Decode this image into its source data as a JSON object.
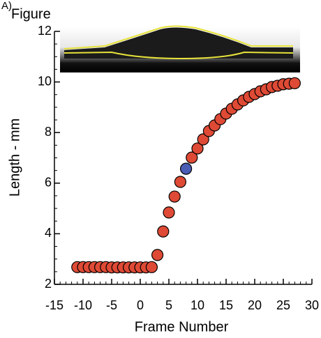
{
  "chart_data": {
    "type": "scatter",
    "panel_label": "A)",
    "title": "Figure",
    "xlabel": "Frame Number",
    "ylabel": "Length - mm",
    "x": [
      -11,
      -10,
      -9,
      -8,
      -7,
      -6,
      -5,
      -4,
      -3,
      -2,
      -1,
      0,
      1,
      2,
      3,
      4,
      5,
      6,
      7,
      8,
      9,
      10,
      11,
      12,
      13,
      14,
      15,
      16,
      17,
      18,
      19,
      20,
      21,
      22,
      23,
      24,
      25,
      26,
      27
    ],
    "values": [
      2.68,
      2.68,
      2.68,
      2.68,
      2.68,
      2.68,
      2.67,
      2.67,
      2.67,
      2.67,
      2.67,
      2.67,
      2.67,
      2.68,
      3.16,
      4.09,
      4.84,
      5.47,
      6.05,
      6.57,
      7.01,
      7.37,
      7.73,
      8.06,
      8.28,
      8.53,
      8.75,
      8.94,
      9.11,
      9.27,
      9.41,
      9.52,
      9.63,
      9.71,
      9.8,
      9.85,
      9.91,
      9.93,
      9.95
    ],
    "color": "#de4a35",
    "highlight_index": 19,
    "highlight_color": "#4a5db4",
    "xlim": [
      -15,
      30
    ],
    "xticks": [
      -15,
      -10,
      -5,
      0,
      5,
      10,
      15,
      20,
      25,
      30
    ],
    "ylim": [
      2,
      12
    ],
    "yticks": [
      2,
      4,
      6,
      8,
      10,
      12
    ],
    "minor_xtick_step": 1,
    "minor_ytick_step": 0.5
  }
}
